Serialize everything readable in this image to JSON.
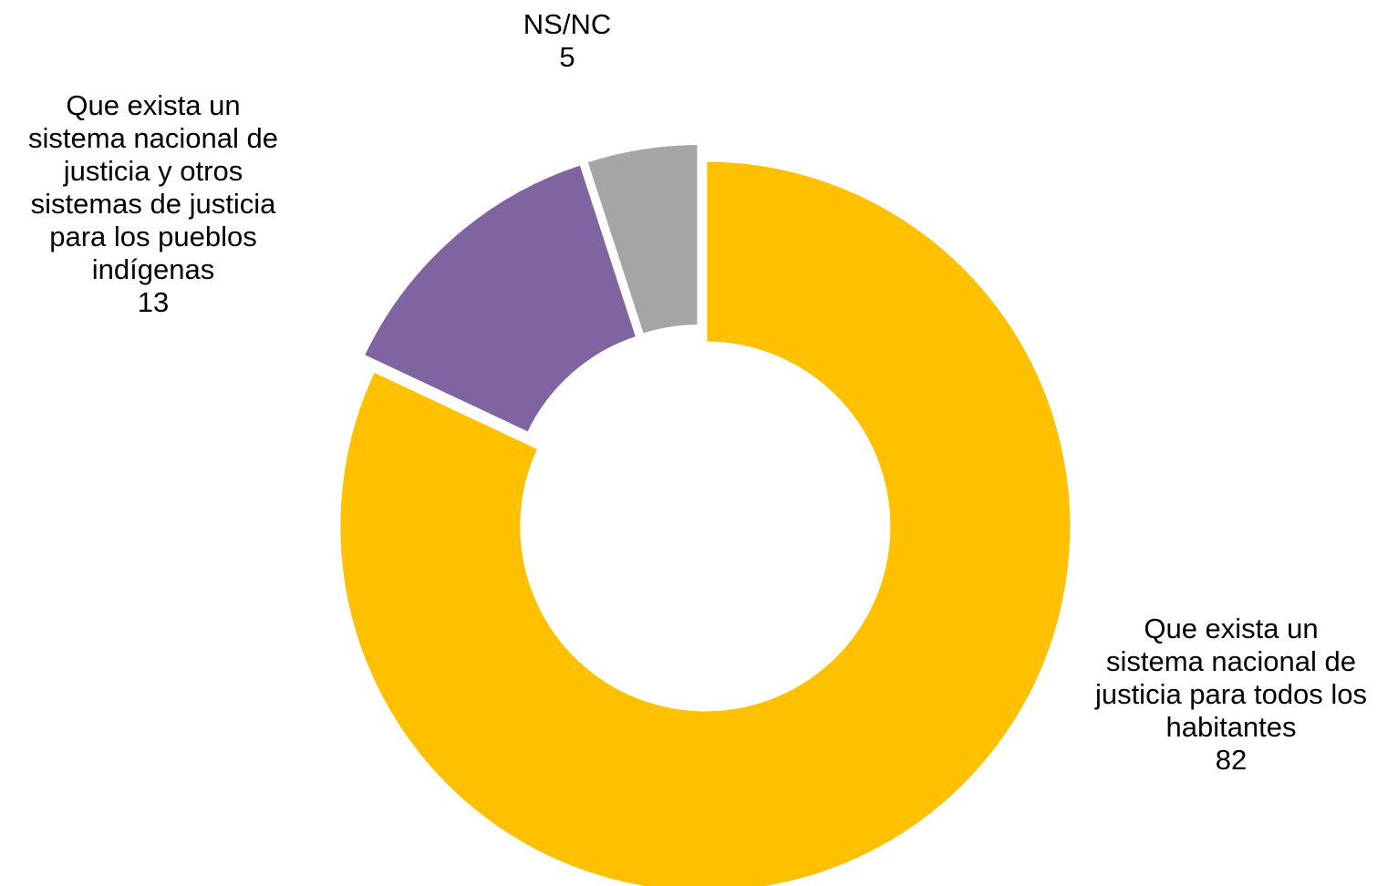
{
  "chart_data": {
    "type": "pie",
    "variant": "donut",
    "title": "",
    "slices": [
      {
        "label_lines": [
          "Que exista un",
          "sistema nacional de",
          "justicia para todos los",
          "habitantes"
        ],
        "value": 82,
        "value_text": "82",
        "color": "#FFC000"
      },
      {
        "label_lines": [
          "Que exista un",
          "sistema nacional de",
          "justicia y otros",
          "sistemas de justicia",
          "para los pueblos",
          "indígenas"
        ],
        "value": 13,
        "value_text": "13",
        "color": "#8064A2"
      },
      {
        "label_lines": [
          "NS/NC"
        ],
        "value": 5,
        "value_text": "5",
        "color": "#A5A5A5"
      }
    ],
    "start": "12 o'clock",
    "direction": "clockwise",
    "exploded": true,
    "legend": "none",
    "data_labels": "outside"
  }
}
